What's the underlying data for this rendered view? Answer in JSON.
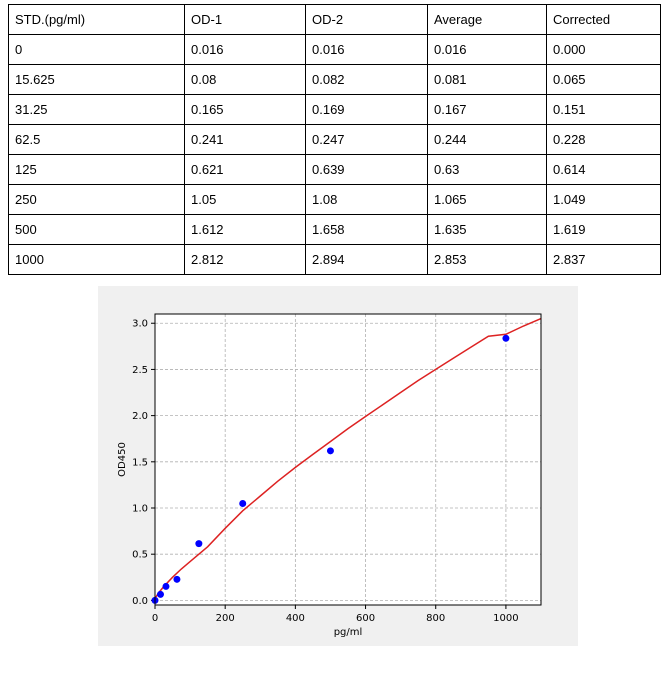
{
  "table": {
    "headers": [
      "STD.(pg/ml)",
      "OD-1",
      "OD-2",
      "Average",
      "Corrected"
    ],
    "rows": [
      [
        "0",
        "0.016",
        "0.016",
        "0.016",
        "0.000"
      ],
      [
        "15.625",
        "0.08",
        "0.082",
        "0.081",
        "0.065"
      ],
      [
        "31.25",
        "0.165",
        "0.169",
        "0.167",
        "0.151"
      ],
      [
        "62.5",
        "0.241",
        "0.247",
        "0.244",
        "0.228"
      ],
      [
        "125",
        "0.621",
        "0.639",
        "0.63",
        "0.614"
      ],
      [
        "250",
        "1.05",
        "1.08",
        "1.065",
        "1.049"
      ],
      [
        "500",
        "1.612",
        "1.658",
        "1.635",
        "1.619"
      ],
      [
        "1000",
        "2.812",
        "2.894",
        "2.853",
        "2.837"
      ]
    ]
  },
  "chart_data": {
    "type": "scatter",
    "xlabel": "pg/ml",
    "ylabel": "OD450",
    "xlim": [
      0,
      1100
    ],
    "ylim": [
      -0.05,
      3.1
    ],
    "xticks": [
      0,
      200,
      400,
      600,
      800,
      1000
    ],
    "yticks": [
      0.0,
      0.5,
      1.0,
      1.5,
      2.0,
      2.5,
      3.0
    ],
    "grid": true,
    "series": [
      {
        "type": "scatter",
        "color": "#0000ff",
        "x": [
          0,
          15.625,
          31.25,
          62.5,
          125,
          250,
          500,
          1000
        ],
        "y": [
          0.0,
          0.065,
          0.151,
          0.228,
          0.614,
          1.049,
          1.619,
          2.837
        ]
      },
      {
        "type": "line",
        "color": "#dd2222",
        "x": [
          0,
          10,
          25,
          50,
          75,
          100,
          150,
          200,
          250,
          300,
          350,
          400,
          450,
          500,
          550,
          600,
          650,
          700,
          750,
          800,
          850,
          900,
          950,
          1000,
          1050,
          1100
        ],
        "y": [
          0.02,
          0.08,
          0.15,
          0.25,
          0.34,
          0.42,
          0.58,
          0.78,
          0.97,
          1.13,
          1.29,
          1.44,
          1.58,
          1.72,
          1.86,
          1.99,
          2.12,
          2.25,
          2.38,
          2.5,
          2.62,
          2.74,
          2.86,
          2.88,
          2.97,
          3.05
        ]
      }
    ]
  }
}
